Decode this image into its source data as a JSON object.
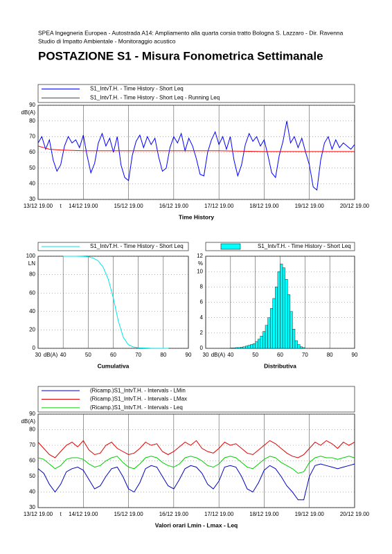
{
  "header": {
    "lines": [
      "SPEA Ingegneria Europea - Autostrada A14: Ampliamento alla quarta corsia tratto Bologna S. Lazzaro - Dir. Ravenna",
      "Studio di Impatto Ambientale - Monitoraggio acustico"
    ],
    "title": "POSTAZIONE S1 - Misura Fonometrica Settimanale"
  },
  "chart_data": [
    {
      "type": "line",
      "title": "Time History",
      "ylabel": "dB(A)",
      "xunit": "t",
      "grid": true,
      "xlim": [
        0,
        168
      ],
      "xticks": [
        {
          "value": 0,
          "label": "13/12 19.00"
        },
        {
          "value": 24,
          "label": "14/12 19.00"
        },
        {
          "value": 48,
          "label": "15/12 19.00"
        },
        {
          "value": 72,
          "label": "16/12 19.00"
        },
        {
          "value": 96,
          "label": "17/12 19.00"
        },
        {
          "value": 120,
          "label": "18/12 19.00"
        },
        {
          "value": 144,
          "label": "19/12 19.00"
        },
        {
          "value": 168,
          "label": "20/12 19.00"
        }
      ],
      "ylim": [
        30,
        90
      ],
      "yticks": [
        30,
        40,
        50,
        60,
        70,
        80,
        90
      ],
      "series": [
        {
          "name": "S1_IntvT.H. - Time History - Short Leq",
          "color": "#0000ff",
          "x": [
            0,
            2,
            4,
            6,
            8,
            10,
            12,
            14,
            16,
            18,
            20,
            22,
            24,
            26,
            28,
            30,
            32,
            34,
            36,
            38,
            40,
            42,
            44,
            46,
            48,
            50,
            52,
            54,
            56,
            58,
            60,
            62,
            64,
            66,
            68,
            70,
            72,
            74,
            76,
            78,
            80,
            82,
            84,
            86,
            88,
            90,
            92,
            94,
            96,
            98,
            100,
            102,
            104,
            106,
            108,
            110,
            112,
            114,
            116,
            118,
            120,
            122,
            124,
            126,
            128,
            130,
            132,
            134,
            136,
            138,
            140,
            142,
            144,
            146,
            148,
            150,
            152,
            154,
            156,
            158,
            160,
            162,
            164,
            166,
            168
          ],
          "values": [
            66,
            70,
            62,
            68,
            55,
            48,
            52,
            64,
            70,
            66,
            68,
            63,
            71,
            58,
            47,
            53,
            66,
            72,
            64,
            69,
            60,
            70,
            52,
            44,
            42,
            58,
            67,
            71,
            63,
            70,
            65,
            69,
            57,
            48,
            50,
            63,
            70,
            66,
            72,
            61,
            69,
            64,
            56,
            46,
            45,
            60,
            68,
            73,
            65,
            70,
            62,
            70,
            55,
            45,
            52,
            65,
            72,
            67,
            70,
            64,
            68,
            58,
            47,
            44,
            58,
            67,
            80,
            66,
            70,
            63,
            69,
            60,
            52,
            38,
            36,
            55,
            66,
            70,
            62,
            68,
            63,
            66,
            64,
            62,
            65
          ]
        },
        {
          "name": "S1_IntvT.H. - Time History - Short Leq - Running Leq",
          "color": "#ff0000",
          "x": [
            0,
            3,
            6,
            12,
            24,
            48,
            72,
            96,
            120,
            144,
            168
          ],
          "values": [
            64,
            63,
            62,
            61.5,
            61,
            61,
            61,
            61,
            60.5,
            60.5,
            60.5
          ]
        }
      ]
    },
    {
      "type": "line",
      "title": "Cumulativa",
      "ylabel": "LN",
      "xunit": "dB(A)",
      "grid": true,
      "xlim": [
        30,
        90
      ],
      "xticks": [
        30,
        40,
        50,
        60,
        70,
        80,
        90
      ],
      "ylim": [
        0,
        100
      ],
      "yticks": [
        0,
        20,
        40,
        60,
        80,
        100
      ],
      "series": [
        {
          "name": "S1_IntvT.H. - Time History - Short Leq",
          "color": "#00e5e5",
          "x": [
            40,
            45,
            48,
            50,
            52,
            54,
            56,
            58,
            60,
            62,
            64,
            66,
            68,
            70,
            75,
            82
          ],
          "values": [
            100,
            100,
            99.8,
            99.5,
            98,
            95,
            88,
            75,
            55,
            30,
            12,
            4,
            1.5,
            0.5,
            0.1,
            0
          ]
        }
      ]
    },
    {
      "type": "histogram",
      "title": "Distributiva",
      "ylabel": "%",
      "xunit": "dB(A)",
      "grid": true,
      "name": "S1_IntvT.H. - Time History - Short Leq",
      "color": "#00ffff",
      "xlim": [
        30,
        90
      ],
      "xticks": [
        30,
        40,
        50,
        60,
        70,
        80,
        90
      ],
      "ylim": [
        0,
        12
      ],
      "yticks": [
        0,
        2,
        4,
        6,
        8,
        10,
        12
      ],
      "bins": [
        40,
        41,
        42,
        43,
        44,
        45,
        46,
        47,
        48,
        49,
        50,
        51,
        52,
        53,
        54,
        55,
        56,
        57,
        58,
        59,
        60,
        61,
        62,
        63,
        64,
        65,
        66,
        67,
        68,
        69,
        70
      ],
      "values": [
        0.05,
        0.05,
        0.1,
        0.1,
        0.15,
        0.2,
        0.3,
        0.4,
        0.5,
        0.6,
        0.9,
        1.2,
        1.6,
        2.2,
        3,
        4,
        5.2,
        6.5,
        8,
        10,
        11,
        10.5,
        9,
        7,
        4.8,
        2.5,
        1,
        0.5,
        0.2,
        0.1
      ]
    },
    {
      "type": "line",
      "title": "Valori orari Lmin - Lmax - Leq",
      "ylabel": "dB(A)",
      "xunit": "t",
      "grid": true,
      "xlim": [
        0,
        168
      ],
      "xticks": [
        {
          "value": 0,
          "label": "13/12 19.00"
        },
        {
          "value": 24,
          "label": "14/12 19.00"
        },
        {
          "value": 48,
          "label": "15/12 19.00"
        },
        {
          "value": 72,
          "label": "16/12 19.00"
        },
        {
          "value": 96,
          "label": "17/12 19.00"
        },
        {
          "value": 120,
          "label": "18/12 19.00"
        },
        {
          "value": 144,
          "label": "19/12 19.00"
        },
        {
          "value": 168,
          "label": "20/12 19.00"
        }
      ],
      "ylim": [
        30,
        90
      ],
      "yticks": [
        30,
        40,
        50,
        60,
        70,
        80,
        90
      ],
      "x": [
        0,
        3,
        6,
        9,
        12,
        15,
        18,
        21,
        24,
        27,
        30,
        33,
        36,
        39,
        42,
        45,
        48,
        51,
        54,
        57,
        60,
        63,
        66,
        69,
        72,
        75,
        78,
        81,
        84,
        87,
        90,
        93,
        96,
        99,
        102,
        105,
        108,
        111,
        114,
        117,
        120,
        123,
        126,
        129,
        132,
        135,
        138,
        141,
        144,
        147,
        150,
        153,
        156,
        159,
        162,
        165,
        168
      ],
      "series": [
        {
          "name": "(Ricamp.)S1_IntvT.H. - Intervals - LMin",
          "color": "#0000c0",
          "values": [
            55,
            52,
            45,
            40,
            45,
            53,
            55,
            56,
            54,
            48,
            42,
            44,
            50,
            55,
            56,
            50,
            42,
            40,
            46,
            55,
            57,
            56,
            50,
            44,
            42,
            48,
            55,
            57,
            56,
            52,
            45,
            42,
            47,
            56,
            57,
            56,
            50,
            42,
            40,
            46,
            54,
            57,
            55,
            50,
            44,
            40,
            35,
            35,
            50,
            57,
            58,
            57,
            56,
            55,
            56,
            57,
            58
          ]
        },
        {
          "name": "(Ricamp.)S1_IntvT.H. - Intervals - LMax",
          "color": "#e00000",
          "values": [
            72,
            68,
            64,
            62,
            66,
            70,
            72,
            69,
            73,
            67,
            64,
            65,
            70,
            72,
            68,
            66,
            64,
            65,
            68,
            72,
            70,
            71,
            66,
            64,
            66,
            69,
            72,
            70,
            73,
            68,
            66,
            65,
            68,
            72,
            70,
            71,
            68,
            65,
            64,
            67,
            70,
            73,
            71,
            68,
            65,
            63,
            62,
            64,
            68,
            72,
            70,
            73,
            71,
            68,
            72,
            70,
            72
          ]
        },
        {
          "name": "(Ricamp.)S1_IntvT.H. - Intervals - Leq",
          "color": "#00d000",
          "values": [
            62,
            61,
            58,
            55,
            57,
            61,
            62,
            62,
            61,
            58,
            56,
            57,
            60,
            62,
            63,
            59,
            56,
            55,
            58,
            62,
            63,
            62,
            59,
            57,
            56,
            58,
            62,
            63,
            62,
            60,
            57,
            56,
            58,
            62,
            63,
            62,
            59,
            56,
            55,
            58,
            61,
            63,
            62,
            59,
            57,
            55,
            52,
            53,
            59,
            62,
            63,
            62,
            62,
            61,
            62,
            63,
            62
          ]
        }
      ]
    }
  ]
}
